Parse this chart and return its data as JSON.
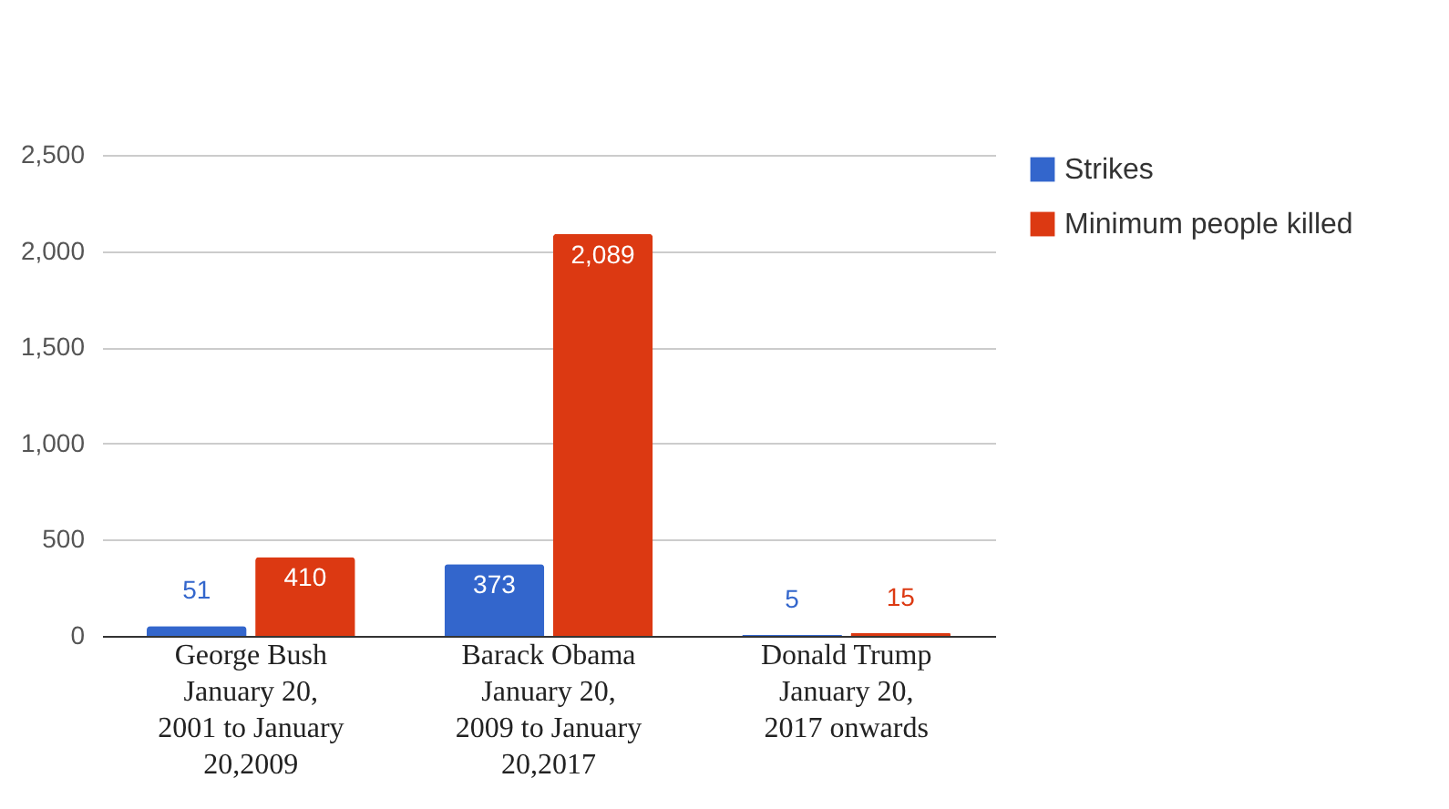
{
  "chart_data": {
    "type": "bar",
    "categories": [
      "George Bush\nJanuary 20,\n2001 to January\n20,2009",
      "Barack Obama\nJanuary 20,\n2009 to January\n20,2017",
      "Donald Trump\nJanuary 20,\n2017 onwards"
    ],
    "series": [
      {
        "name": "Strikes",
        "color": "#3366cc",
        "values": [
          51,
          373,
          5
        ],
        "value_labels": [
          "51",
          "373",
          "5"
        ]
      },
      {
        "name": "Minimum people killed",
        "color": "#dc3912",
        "values": [
          410,
          2089,
          15
        ],
        "value_labels": [
          "410",
          "2,089",
          "15"
        ]
      }
    ],
    "ylim": [
      0,
      2500
    ],
    "yticks": [
      0,
      {
        "value": 500,
        "label": "500"
      },
      {
        "value": 1000,
        "label": "1,000"
      },
      {
        "value": 1500,
        "label": "1,500"
      },
      {
        "value": 2000,
        "label": "2,000"
      },
      {
        "value": 2500,
        "label": "2,500"
      }
    ],
    "grid": "y",
    "legend": "right"
  }
}
